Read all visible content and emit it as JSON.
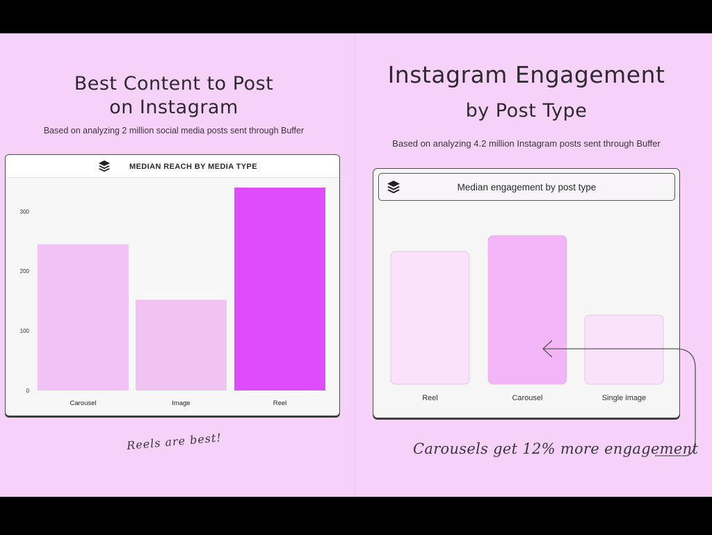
{
  "left": {
    "title_line1": "Best Content to Post",
    "title_line2": "on Instagram",
    "subtitle": "Based on analyzing 2 million social media posts sent through Buffer",
    "note": "Reels are best!"
  },
  "right": {
    "title_line1": "Instagram Engagement",
    "title_line2": "by Post Type",
    "subtitle": "Based on analyzing 4.2 million Instagram posts sent through Buffer",
    "note": "Carousels get 12% more engagement"
  },
  "chart_data": [
    {
      "type": "bar",
      "title": "MEDIAN REACH BY MEDIA TYPE",
      "categories": [
        "Carousel",
        "Image",
        "Reel"
      ],
      "values": [
        245,
        152,
        340
      ],
      "ylim": [
        0,
        340
      ],
      "yticks": [
        0,
        100,
        200,
        300
      ],
      "colors": [
        "#f2c2f6",
        "#f0c3f3",
        "#df4cfb"
      ],
      "logo": "buffer-logo-icon"
    },
    {
      "type": "bar",
      "title": "Median engagement by post type",
      "categories": [
        "Reel",
        "Carousel",
        "Single image"
      ],
      "values": [
        100,
        112,
        52
      ],
      "ylim": [
        0,
        112
      ],
      "colors": [
        "#fbe2fb",
        "#f3b5f5",
        "#fbe2fb"
      ],
      "logo": "buffer-logo-icon"
    }
  ]
}
